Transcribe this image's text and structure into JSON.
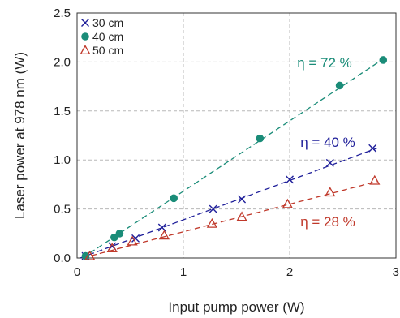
{
  "chart_data": {
    "type": "scatter",
    "xlabel": "Input pump power (W)",
    "ylabel": "Laser power at 978 nm (W)",
    "xlim": [
      0,
      3
    ],
    "ylim": [
      0,
      2.5
    ],
    "x_ticks": [
      "0",
      "1",
      "2",
      "3"
    ],
    "y_ticks": [
      "0.0",
      "0.5",
      "1.0",
      "1.5",
      "2.0",
      "2.5"
    ],
    "grid": true,
    "legend_position": "top-left",
    "series": [
      {
        "name": "30 cm",
        "marker": "x",
        "color": "#1f1f9a",
        "x": [
          0.08,
          0.33,
          0.55,
          0.8,
          1.28,
          1.55,
          2.0,
          2.38,
          2.78
        ],
        "y": [
          0.02,
          0.12,
          0.2,
          0.31,
          0.5,
          0.6,
          0.8,
          0.97,
          1.12
        ],
        "fit": {
          "x": [
            0.03,
            2.82
          ],
          "y": [
            0.0,
            1.12
          ]
        },
        "annotation": "η = 40 %"
      },
      {
        "name": "40 cm",
        "marker": "circle",
        "color": "#1a8c78",
        "x": [
          0.08,
          0.35,
          0.4,
          0.91,
          1.72,
          2.47,
          2.88
        ],
        "y": [
          0.02,
          0.21,
          0.25,
          0.61,
          1.22,
          1.76,
          2.02
        ],
        "fit": {
          "x": [
            0.05,
            2.88
          ],
          "y": [
            0.0,
            2.03
          ]
        },
        "annotation": "η = 72 %"
      },
      {
        "name": "50 cm",
        "marker": "triangle",
        "color": "#c0392b",
        "x": [
          0.12,
          0.33,
          0.52,
          0.82,
          1.27,
          1.55,
          1.98,
          2.38,
          2.8
        ],
        "y": [
          0.02,
          0.1,
          0.17,
          0.23,
          0.35,
          0.42,
          0.55,
          0.67,
          0.79
        ],
        "fit": {
          "x": [
            0.05,
            2.82
          ],
          "y": [
            0.0,
            0.78
          ]
        },
        "annotation": "η = 28 %"
      }
    ]
  }
}
